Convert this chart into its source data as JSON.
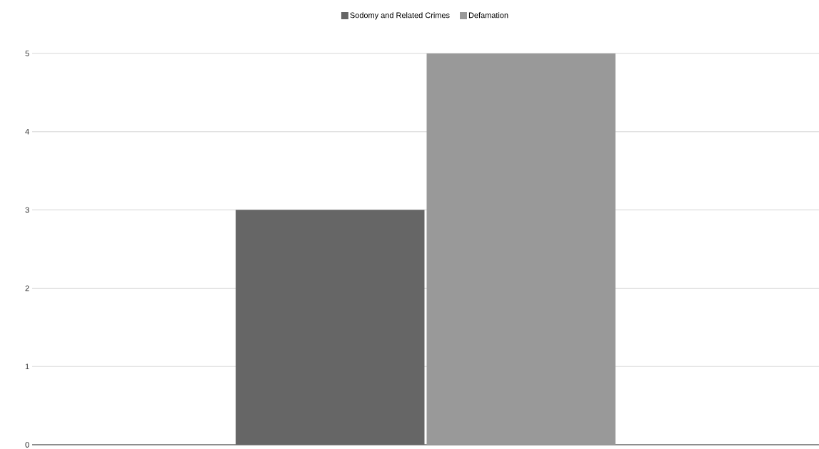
{
  "chart_data": {
    "type": "bar",
    "categories": [
      null
    ],
    "series": [
      {
        "name": "Sodomy and Related Crimes",
        "color": "#666666",
        "values": [
          3
        ]
      },
      {
        "name": "Defamation",
        "color": "#999999",
        "values": [
          5
        ]
      }
    ],
    "ylim": [
      0,
      5
    ],
    "yticks": [
      0,
      1,
      2,
      3,
      4,
      5
    ],
    "grid": "y",
    "legend": "top"
  }
}
